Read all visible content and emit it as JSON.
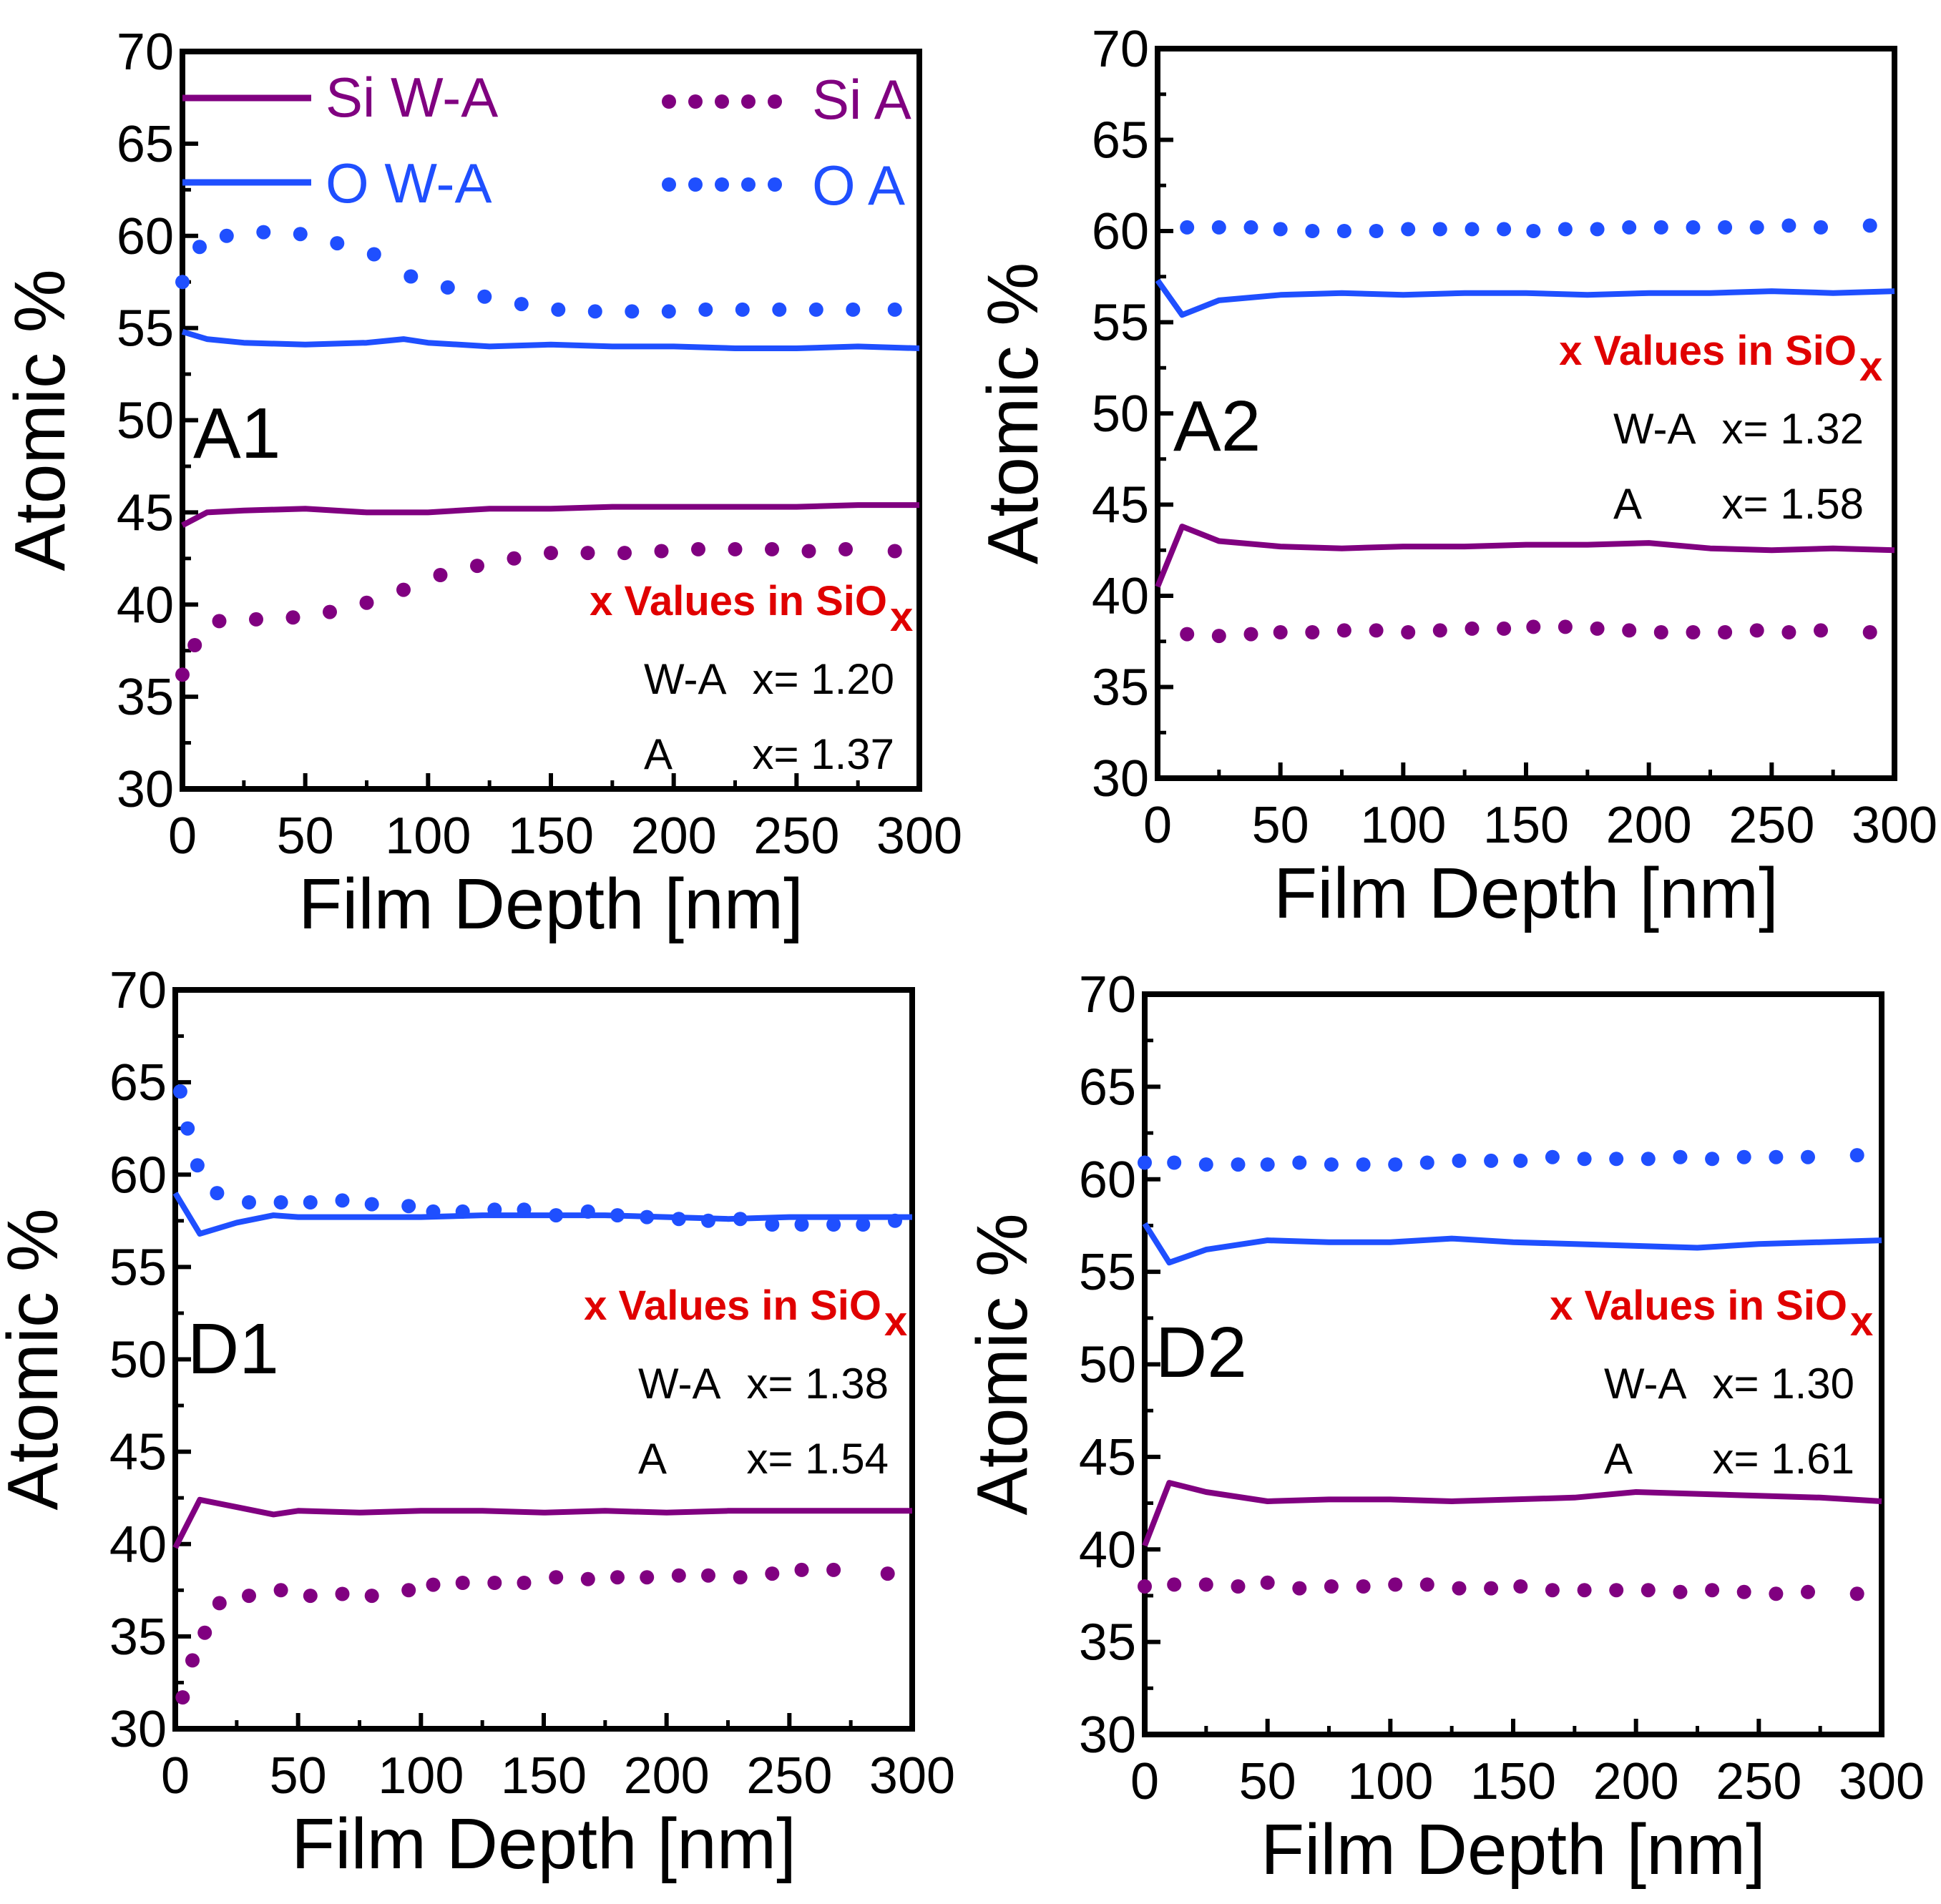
{
  "colors": {
    "si": "#800080",
    "o": "#1f4fff",
    "note_title": "#e00000",
    "axis": "#000000"
  },
  "legend": {
    "si_wa": "Si W-A",
    "si_a": "Si A",
    "o_wa": "O W-A",
    "o_a": "O A"
  },
  "chart_data": [
    {
      "type": "line",
      "panel": "A1",
      "xlabel": "Film Depth [nm]",
      "ylabel": "Atomic %",
      "xlim": [
        0,
        300
      ],
      "ylim": [
        30,
        70
      ],
      "xticks": [
        "0",
        "50",
        "100",
        "150",
        "200",
        "250",
        "300"
      ],
      "yticks": [
        "30",
        "35",
        "40",
        "45",
        "50",
        "55",
        "60",
        "65",
        "70"
      ],
      "note_title": "x Values in SiO",
      "note_sub": "x",
      "note_rows": [
        {
          "label": "W-A",
          "value": "x= 1.20"
        },
        {
          "label": "A",
          "value": "x= 1.37"
        }
      ],
      "series": [
        {
          "name": "Si W-A",
          "style": "solid",
          "color": "si",
          "x": [
            0,
            10,
            25,
            50,
            75,
            100,
            125,
            150,
            175,
            200,
            225,
            250,
            275,
            300
          ],
          "y": [
            44.3,
            45.0,
            45.1,
            45.2,
            45.0,
            45.0,
            45.2,
            45.2,
            45.3,
            45.3,
            45.3,
            45.3,
            45.4,
            45.4
          ]
        },
        {
          "name": "Si A",
          "style": "dotted",
          "color": "si",
          "x": [
            0,
            5,
            15,
            30,
            45,
            60,
            75,
            90,
            105,
            120,
            135,
            150,
            165,
            180,
            195,
            210,
            225,
            240,
            255,
            270,
            290
          ],
          "y": [
            36.2,
            37.8,
            39.1,
            39.2,
            39.3,
            39.6,
            40.1,
            40.8,
            41.6,
            42.1,
            42.5,
            42.8,
            42.8,
            42.8,
            42.9,
            43.0,
            43.0,
            43.0,
            42.9,
            43.0,
            42.9
          ]
        },
        {
          "name": "O W-A",
          "style": "solid",
          "color": "o",
          "x": [
            0,
            10,
            25,
            50,
            75,
            90,
            100,
            125,
            150,
            175,
            200,
            225,
            250,
            275,
            300
          ],
          "y": [
            54.8,
            54.4,
            54.2,
            54.1,
            54.2,
            54.4,
            54.2,
            54.0,
            54.1,
            54.0,
            54.0,
            53.9,
            53.9,
            54.0,
            53.9
          ]
        },
        {
          "name": "O A",
          "style": "dotted",
          "color": "o",
          "x": [
            0,
            7,
            18,
            33,
            48,
            63,
            78,
            93,
            108,
            123,
            138,
            153,
            168,
            183,
            198,
            213,
            228,
            243,
            258,
            273,
            290
          ],
          "y": [
            57.5,
            59.4,
            60.0,
            60.2,
            60.1,
            59.6,
            59.0,
            57.8,
            57.2,
            56.7,
            56.3,
            56.0,
            55.9,
            55.9,
            55.9,
            56.0,
            56.0,
            56.0,
            56.0,
            56.0,
            56.0
          ]
        }
      ]
    },
    {
      "type": "line",
      "panel": "A2",
      "xlabel": "Film Depth [nm]",
      "ylabel": "Atomic %",
      "xlim": [
        0,
        300
      ],
      "ylim": [
        30,
        70
      ],
      "xticks": [
        "0",
        "50",
        "100",
        "150",
        "200",
        "250",
        "300"
      ],
      "yticks": [
        "30",
        "35",
        "40",
        "45",
        "50",
        "55",
        "60",
        "65",
        "70"
      ],
      "note_title": "x Values in SiO",
      "note_sub": "x",
      "note_rows": [
        {
          "label": "W-A",
          "value": "x= 1.32"
        },
        {
          "label": "A",
          "value": "x= 1.58"
        }
      ],
      "series": [
        {
          "name": "Si W-A",
          "style": "solid",
          "color": "si",
          "x": [
            0,
            10,
            25,
            50,
            75,
            100,
            125,
            150,
            175,
            200,
            225,
            250,
            275,
            300
          ],
          "y": [
            40.5,
            43.8,
            43.0,
            42.7,
            42.6,
            42.7,
            42.7,
            42.8,
            42.8,
            42.9,
            42.6,
            42.5,
            42.6,
            42.5
          ]
        },
        {
          "name": "Si A",
          "style": "dotted",
          "color": "si",
          "x": [
            12,
            25,
            38,
            50,
            63,
            76,
            89,
            102,
            115,
            128,
            141,
            153,
            166,
            179,
            192,
            205,
            218,
            231,
            244,
            257,
            270,
            290
          ],
          "y": [
            37.9,
            37.8,
            37.9,
            38.0,
            38.0,
            38.1,
            38.1,
            38.0,
            38.1,
            38.2,
            38.2,
            38.3,
            38.3,
            38.2,
            38.1,
            38.0,
            38.0,
            38.0,
            38.1,
            38.0,
            38.1,
            38.0
          ]
        },
        {
          "name": "O W-A",
          "style": "solid",
          "color": "o",
          "x": [
            0,
            10,
            25,
            50,
            75,
            100,
            125,
            150,
            175,
            200,
            225,
            250,
            275,
            300
          ],
          "y": [
            57.3,
            55.4,
            56.2,
            56.5,
            56.6,
            56.5,
            56.6,
            56.6,
            56.5,
            56.6,
            56.6,
            56.7,
            56.6,
            56.7
          ]
        },
        {
          "name": "O A",
          "style": "dotted",
          "color": "o",
          "x": [
            12,
            25,
            38,
            50,
            63,
            76,
            89,
            102,
            115,
            128,
            141,
            153,
            166,
            179,
            192,
            205,
            218,
            231,
            244,
            257,
            270,
            290
          ],
          "y": [
            60.2,
            60.2,
            60.2,
            60.1,
            60.0,
            60.0,
            60.0,
            60.1,
            60.1,
            60.1,
            60.1,
            60.0,
            60.1,
            60.1,
            60.2,
            60.2,
            60.2,
            60.2,
            60.2,
            60.3,
            60.2,
            60.3
          ]
        }
      ]
    },
    {
      "type": "line",
      "panel": "D1",
      "xlabel": "Film Depth [nm]",
      "ylabel": "Atomic %",
      "xlim": [
        0,
        300
      ],
      "ylim": [
        30,
        70
      ],
      "xticks": [
        "0",
        "50",
        "100",
        "150",
        "200",
        "250",
        "300"
      ],
      "yticks": [
        "30",
        "35",
        "40",
        "45",
        "50",
        "55",
        "60",
        "65",
        "70"
      ],
      "note_title": "x Values in SiO",
      "note_sub": "x",
      "note_rows": [
        {
          "label": "W-A",
          "value": "x= 1.38"
        },
        {
          "label": "A",
          "value": "x= 1.54"
        }
      ],
      "series": [
        {
          "name": "Si W-A",
          "style": "solid",
          "color": "si",
          "x": [
            0,
            10,
            25,
            40,
            50,
            75,
            100,
            125,
            150,
            175,
            200,
            225,
            250,
            275,
            300
          ],
          "y": [
            39.8,
            42.4,
            42.0,
            41.6,
            41.8,
            41.7,
            41.8,
            41.8,
            41.7,
            41.8,
            41.7,
            41.8,
            41.8,
            41.8,
            41.8
          ]
        },
        {
          "name": "Si A",
          "style": "dotted",
          "color": "si",
          "x": [
            3,
            7,
            12,
            18,
            30,
            43,
            55,
            68,
            80,
            95,
            105,
            117,
            130,
            142,
            155,
            168,
            180,
            192,
            205,
            217,
            230,
            243,
            255,
            268,
            290
          ],
          "y": [
            31.7,
            33.7,
            35.2,
            36.8,
            37.2,
            37.5,
            37.2,
            37.3,
            37.2,
            37.5,
            37.8,
            37.9,
            37.9,
            37.9,
            38.2,
            38.1,
            38.2,
            38.2,
            38.3,
            38.3,
            38.2,
            38.4,
            38.6,
            38.6,
            38.4
          ]
        },
        {
          "name": "O W-A",
          "style": "solid",
          "color": "o",
          "x": [
            0,
            10,
            25,
            40,
            50,
            75,
            100,
            125,
            150,
            175,
            200,
            225,
            250,
            275,
            300
          ],
          "y": [
            59.0,
            56.8,
            57.4,
            57.8,
            57.7,
            57.7,
            57.7,
            57.8,
            57.8,
            57.8,
            57.7,
            57.6,
            57.7,
            57.7,
            57.7
          ]
        },
        {
          "name": "O A",
          "style": "dotted",
          "color": "o",
          "x": [
            2,
            5,
            9,
            17,
            30,
            43,
            55,
            68,
            80,
            95,
            105,
            117,
            130,
            142,
            155,
            168,
            180,
            192,
            205,
            217,
            230,
            243,
            255,
            268,
            280,
            293
          ],
          "y": [
            64.5,
            62.5,
            60.5,
            59.0,
            58.5,
            58.5,
            58.5,
            58.6,
            58.4,
            58.3,
            58.0,
            58.0,
            58.1,
            58.1,
            57.8,
            58.0,
            57.8,
            57.7,
            57.6,
            57.5,
            57.6,
            57.3,
            57.3,
            57.3,
            57.3,
            57.5
          ]
        }
      ]
    },
    {
      "type": "line",
      "panel": "D2",
      "xlabel": "Film Depth [nm]",
      "ylabel": "Atomic %",
      "xlim": [
        0,
        300
      ],
      "ylim": [
        30,
        70
      ],
      "xticks": [
        "0",
        "50",
        "100",
        "150",
        "200",
        "250",
        "300"
      ],
      "yticks": [
        "30",
        "35",
        "40",
        "45",
        "50",
        "55",
        "60",
        "65",
        "70"
      ],
      "note_title": "x Values in SiO",
      "note_sub": "x",
      "note_rows": [
        {
          "label": "W-A",
          "value": "x= 1.30"
        },
        {
          "label": "A",
          "value": "x= 1.61"
        }
      ],
      "series": [
        {
          "name": "Si W-A",
          "style": "solid",
          "color": "si",
          "x": [
            0,
            10,
            25,
            50,
            75,
            100,
            125,
            150,
            175,
            200,
            225,
            250,
            275,
            300
          ],
          "y": [
            40.2,
            43.6,
            43.1,
            42.6,
            42.7,
            42.7,
            42.6,
            42.7,
            42.8,
            43.1,
            43.0,
            42.9,
            42.8,
            42.6
          ]
        },
        {
          "name": "Si A",
          "style": "dotted",
          "color": "si",
          "x": [
            0,
            12,
            25,
            38,
            50,
            63,
            76,
            89,
            102,
            115,
            128,
            141,
            153,
            166,
            179,
            192,
            205,
            218,
            231,
            244,
            257,
            270,
            290
          ],
          "y": [
            38.0,
            38.1,
            38.1,
            38.0,
            38.2,
            37.9,
            38.0,
            38.0,
            38.1,
            38.1,
            37.9,
            37.9,
            38.0,
            37.8,
            37.8,
            37.8,
            37.8,
            37.7,
            37.8,
            37.7,
            37.6,
            37.7,
            37.6
          ]
        },
        {
          "name": "O W-A",
          "style": "solid",
          "color": "o",
          "x": [
            0,
            10,
            25,
            50,
            75,
            100,
            125,
            150,
            175,
            200,
            225,
            250,
            275,
            300
          ],
          "y": [
            57.6,
            55.5,
            56.2,
            56.7,
            56.6,
            56.6,
            56.8,
            56.6,
            56.5,
            56.4,
            56.3,
            56.5,
            56.6,
            56.7
          ]
        },
        {
          "name": "O A",
          "style": "dotted",
          "color": "o",
          "x": [
            0,
            12,
            25,
            38,
            50,
            63,
            76,
            89,
            102,
            115,
            128,
            141,
            153,
            166,
            179,
            192,
            205,
            218,
            231,
            244,
            257,
            270,
            290
          ],
          "y": [
            60.9,
            60.9,
            60.8,
            60.8,
            60.8,
            60.9,
            60.8,
            60.8,
            60.8,
            60.9,
            61.0,
            61.0,
            61.0,
            61.2,
            61.1,
            61.1,
            61.1,
            61.2,
            61.1,
            61.2,
            61.2,
            61.2,
            61.3
          ]
        }
      ]
    }
  ]
}
